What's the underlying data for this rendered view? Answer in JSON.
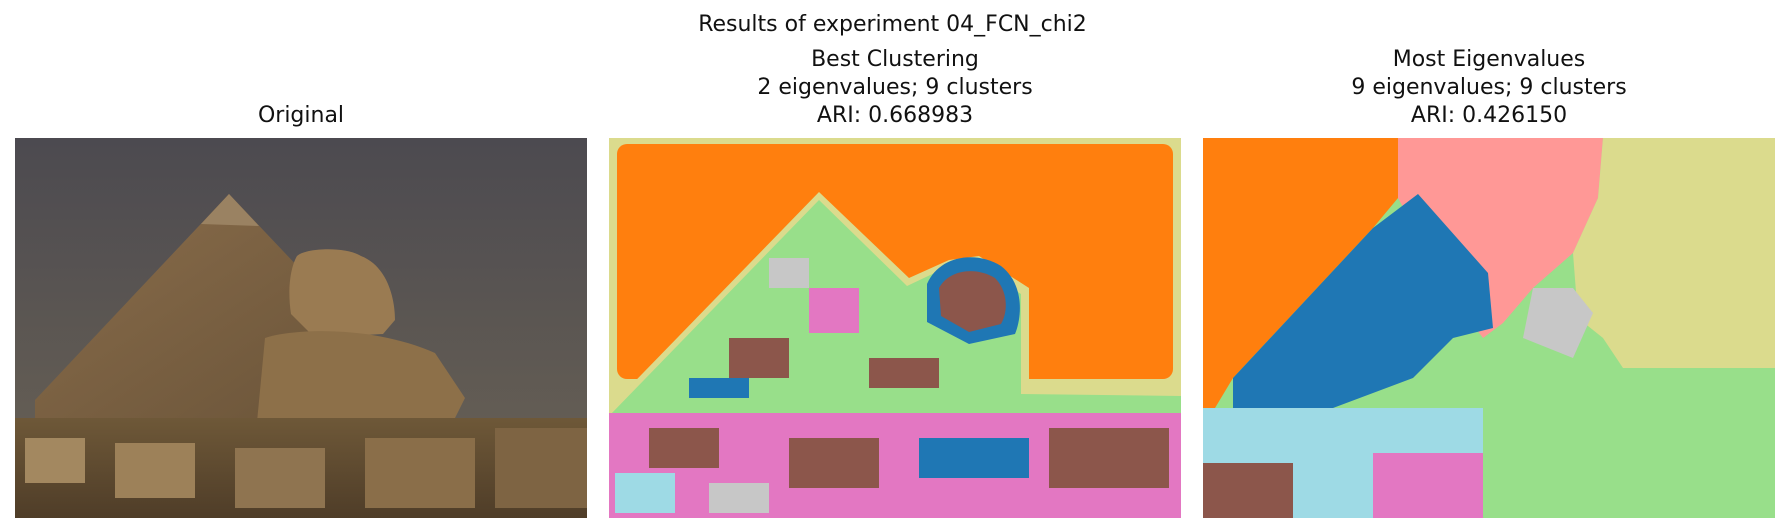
{
  "figure": {
    "suptitle": "Results of experiment 04_FCN_chi2",
    "panels": [
      {
        "title_lines": [
          "Original"
        ]
      },
      {
        "title_lines": [
          "Best Clustering",
          "2 eigenvalues; 9 clusters",
          "ARI: 0.668983"
        ]
      },
      {
        "title_lines": [
          "Most Eigenvalues",
          "9 eigenvalues; 9 clusters",
          "ARI: 0.426150"
        ]
      }
    ]
  },
  "colors": {
    "sky_top": "#4e4c51",
    "sky_bottom": "#6a6255",
    "pyramid": "#7a6246",
    "sphinx": "#9a7a52",
    "ground": "#5e4a31",
    "orange": "#ff7f0e",
    "pale_yellow": "#dbdb8d",
    "blue": "#1f77b4",
    "pink": "#e377c2",
    "light_green": "#98df8a",
    "brown": "#8c564b",
    "light_pink": "#ff9896",
    "light_cyan": "#9edae5",
    "gray": "#c7c7c7"
  }
}
